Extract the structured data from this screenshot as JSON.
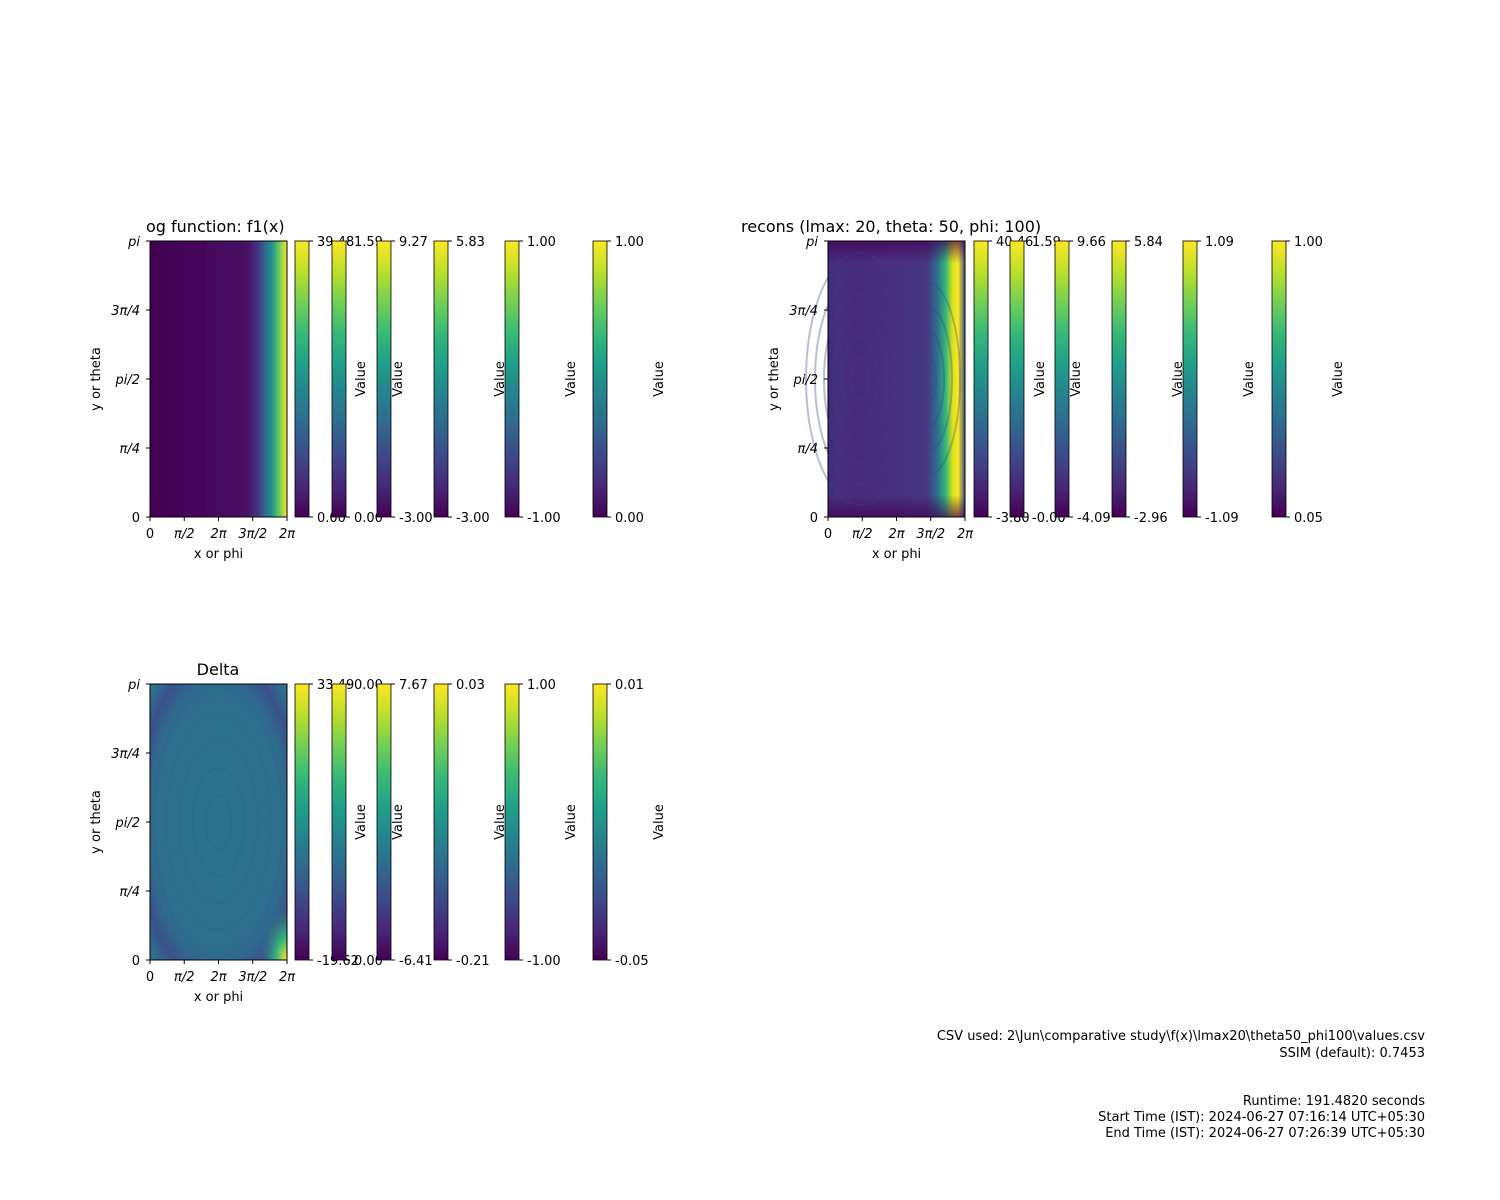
{
  "panels": [
    {
      "title": "og function: f1(x)",
      "xlabel": "x or phi",
      "ylabel": "y or theta",
      "xticks": [
        "0",
        "π/2",
        "2π",
        "3π/2",
        "2π"
      ],
      "yticks": [
        "0",
        "π/4",
        "pi/2",
        "3π/4",
        "pi"
      ],
      "colorbars": [
        {
          "max": "39.48",
          "min": "0.00",
          "label": "Value"
        },
        {
          "max": "1.59",
          "min": "0.00",
          "label": "Value"
        },
        {
          "max": "9.27",
          "min": "-3.00",
          "label": "Value"
        },
        {
          "max": "5.83",
          "min": "-3.00",
          "label": "Value"
        },
        {
          "max": "1.00",
          "min": "-1.00",
          "label": "Value"
        },
        {
          "max": "1.00",
          "min": "0.00",
          "label": "Value"
        }
      ]
    },
    {
      "title": "recons (lmax: 20, theta: 50, phi: 100)",
      "xlabel": "x or phi",
      "ylabel": "y or theta",
      "xticks": [
        "0",
        "π/2",
        "2π",
        "3π/2",
        "2π"
      ],
      "yticks": [
        "0",
        "π/4",
        "pi/2",
        "3π/4",
        "pi"
      ],
      "colorbars": [
        {
          "max": "40.46",
          "min": "-3.80",
          "label": "Value"
        },
        {
          "max": "1.59",
          "min": "-0.00",
          "label": "Value"
        },
        {
          "max": "9.66",
          "min": "-4.09",
          "label": "Value"
        },
        {
          "max": "5.84",
          "min": "-2.96",
          "label": "Value"
        },
        {
          "max": "1.09",
          "min": "-1.09",
          "label": "Value"
        },
        {
          "max": "1.00",
          "min": "0.05",
          "label": "Value"
        }
      ]
    },
    {
      "title": "Delta",
      "xlabel": "x or phi",
      "ylabel": "y or theta",
      "xticks": [
        "0",
        "π/2",
        "2π",
        "3π/2",
        "2π"
      ],
      "yticks": [
        "0",
        "π/4",
        "pi/2",
        "3π/4",
        "pi"
      ],
      "colorbars": [
        {
          "max": "33.49",
          "min": "-19.62",
          "label": "Value"
        },
        {
          "max": "0.00",
          "min": "0.00",
          "label": "Value"
        },
        {
          "max": "7.67",
          "min": "-6.41",
          "label": "Value"
        },
        {
          "max": "0.03",
          "min": "-0.21",
          "label": "Value"
        },
        {
          "max": "1.00",
          "min": "-1.00",
          "label": "Value"
        },
        {
          "max": "0.01",
          "min": "-0.05",
          "label": "Value"
        }
      ]
    }
  ],
  "footer": {
    "csv_line": "CSV used: 2\\Jun\\comparative study\\f(x)\\lmax20\\theta50_phi100\\values.csv",
    "ssim_line": "SSIM (default): 0.7453",
    "runtime_line": "Runtime: 191.4820 seconds",
    "start_line": "Start Time (IST): 2024-06-27 07:16:14 UTC+05:30",
    "end_line": "End Time (IST): 2024-06-27 07:26:39 UTC+05:30"
  },
  "colors": {
    "viridis": [
      "#440154",
      "#482878",
      "#3e4989",
      "#31688e",
      "#26828e",
      "#1f9e89",
      "#35b779",
      "#6ece58",
      "#b5de2b",
      "#fde725"
    ]
  },
  "chart_data": [
    {
      "type": "heatmap",
      "title": "og function: f1(x)",
      "xlabel": "x or phi",
      "ylabel": "y or theta",
      "colormap": "viridis",
      "vrange": [
        0.0,
        39.48
      ],
      "description_values": "low (dark purple) across most of phi, rising sharply to high (yellow) near x = 2π"
    },
    {
      "type": "heatmap",
      "title": "recons (lmax: 20, theta: 50, phi: 100)",
      "xlabel": "x or phi",
      "ylabel": "y or theta",
      "colormap": "viridis",
      "vrange": [
        -3.8,
        40.46
      ]
    },
    {
      "type": "heatmap",
      "title": "Delta",
      "xlabel": "x or phi",
      "ylabel": "y or theta",
      "colormap": "viridis",
      "vrange": [
        -19.62,
        33.49
      ]
    }
  ]
}
